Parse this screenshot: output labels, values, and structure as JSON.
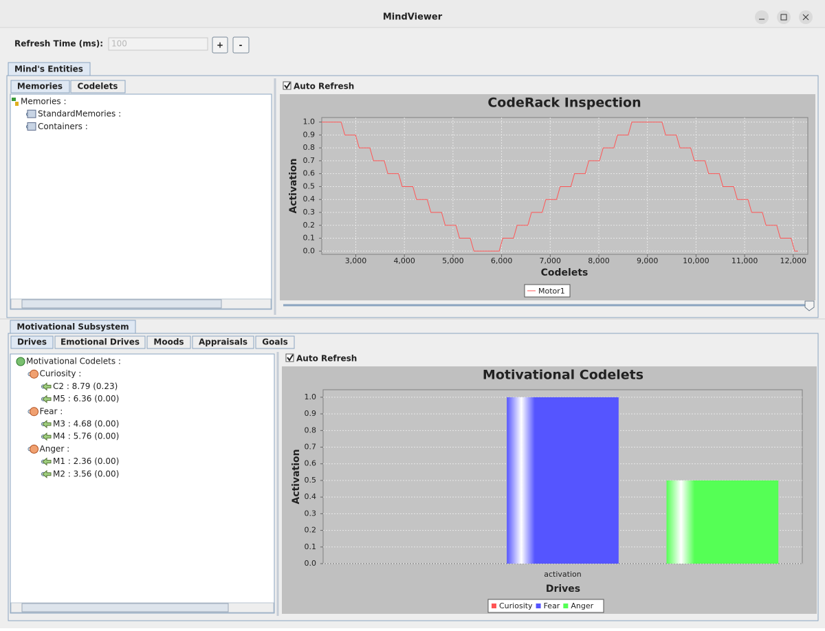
{
  "window": {
    "title": "MindViewer"
  },
  "toolbar": {
    "refresh_label": "Refresh Time (ms):",
    "refresh_value": "100",
    "plus": "+",
    "minus": "-"
  },
  "entities": {
    "tab": "Mind's Entities",
    "subtabs": [
      "Memories",
      "Codelets"
    ],
    "tree": {
      "label": "Memories :",
      "children": [
        {
          "label": "StandardMemories :"
        },
        {
          "label": "Containers :"
        }
      ]
    },
    "auto_refresh": "Auto Refresh"
  },
  "motivational": {
    "tab": "Motivational Subsystem",
    "subtabs": [
      "Drives",
      "Emotional Drives",
      "Moods",
      "Appraisals",
      "Goals"
    ],
    "tree": {
      "label": "Motivational Codelets :",
      "children": [
        {
          "label": "Curiosity :",
          "children": [
            {
              "label": "C2 : 8.79 (0.23)"
            },
            {
              "label": "M5 : 6.36 (0.00)"
            }
          ]
        },
        {
          "label": "Fear :",
          "children": [
            {
              "label": "M3 : 4.68 (0.00)"
            },
            {
              "label": "M4 : 5.76 (0.00)"
            }
          ]
        },
        {
          "label": "Anger :",
          "children": [
            {
              "label": "M1 : 2.36 (0.00)"
            },
            {
              "label": "M2 : 3.56 (0.00)"
            }
          ]
        }
      ]
    },
    "auto_refresh": "Auto Refresh"
  },
  "chart_data": [
    {
      "type": "line",
      "title": "CodeRack Inspection",
      "x_label": "Codelets",
      "y_label": "Activation",
      "x": [
        2300,
        2700,
        2775,
        2995,
        3070,
        3290,
        3365,
        3585,
        3660,
        3880,
        3955,
        4175,
        4250,
        4470,
        4545,
        4765,
        4840,
        5060,
        5135,
        5355,
        5430,
        5950,
        6025,
        6245,
        6320,
        6540,
        6615,
        6835,
        6910,
        7130,
        7205,
        7425,
        7500,
        7720,
        7795,
        8015,
        8090,
        8310,
        8385,
        8605,
        8680,
        9300,
        9375,
        9595,
        9670,
        9890,
        9965,
        10185,
        10260,
        10480,
        10555,
        10775,
        10850,
        11070,
        11145,
        11365,
        11440,
        11660,
        11735,
        11955,
        12030,
        12100
      ],
      "series": [
        {
          "name": "Motor1",
          "color": "#ff5555",
          "values": [
            1,
            1,
            0.9,
            0.9,
            0.8,
            0.8,
            0.7,
            0.7,
            0.6,
            0.6,
            0.5,
            0.5,
            0.4,
            0.4,
            0.3,
            0.3,
            0.2,
            0.2,
            0.1,
            0.1,
            0,
            0,
            0.1,
            0.1,
            0.2,
            0.2,
            0.3,
            0.3,
            0.4,
            0.4,
            0.5,
            0.5,
            0.6,
            0.6,
            0.7,
            0.7,
            0.8,
            0.8,
            0.9,
            0.9,
            1,
            1,
            0.9,
            0.9,
            0.8,
            0.8,
            0.7,
            0.7,
            0.6,
            0.6,
            0.5,
            0.5,
            0.4,
            0.4,
            0.3,
            0.3,
            0.2,
            0.2,
            0.1,
            0.1,
            0,
            0
          ]
        }
      ],
      "xlim": [
        2300,
        12300
      ],
      "ylim": [
        -0.025,
        1.035
      ],
      "xticks": [
        {
          "value": 3000,
          "label": "3,000"
        },
        {
          "value": 4000,
          "label": "4,000"
        },
        {
          "value": 5000,
          "label": "5,000"
        },
        {
          "value": 6000,
          "label": "6,000"
        },
        {
          "value": 7000,
          "label": "7,000"
        },
        {
          "value": 8000,
          "label": "8,000"
        },
        {
          "value": 9000,
          "label": "9,000"
        },
        {
          "value": 10000,
          "label": "10,000"
        },
        {
          "value": 11000,
          "label": "11,000"
        },
        {
          "value": 12000,
          "label": "12,000"
        }
      ],
      "yticks": [
        {
          "value": 0,
          "label": "0.0"
        },
        0.1,
        0.2,
        0.3,
        0.4,
        0.5,
        0.6,
        0.7,
        0.8,
        0.9,
        {
          "value": 1,
          "label": "1.0"
        }
      ],
      "grid": true
    },
    {
      "type": "bar",
      "title": "Motivational Codelets",
      "x_label": "Drives",
      "y_label": "Activation",
      "categories": [
        "activation"
      ],
      "series": [
        {
          "name": "Curiosity",
          "color": "#ff5555",
          "values": [
            0
          ]
        },
        {
          "name": "Fear",
          "color": "#5555ff",
          "values": [
            1.0
          ]
        },
        {
          "name": "Anger",
          "color": "#55ff55",
          "values": [
            0.5
          ]
        }
      ],
      "ylim": [
        0,
        1.045
      ],
      "yticks": [
        {
          "value": 0,
          "label": "0.0"
        },
        0.1,
        0.2,
        0.3,
        0.4,
        0.5,
        0.6,
        0.7,
        0.8,
        0.9,
        {
          "value": 1,
          "label": "1.0"
        }
      ],
      "grid": true
    }
  ]
}
